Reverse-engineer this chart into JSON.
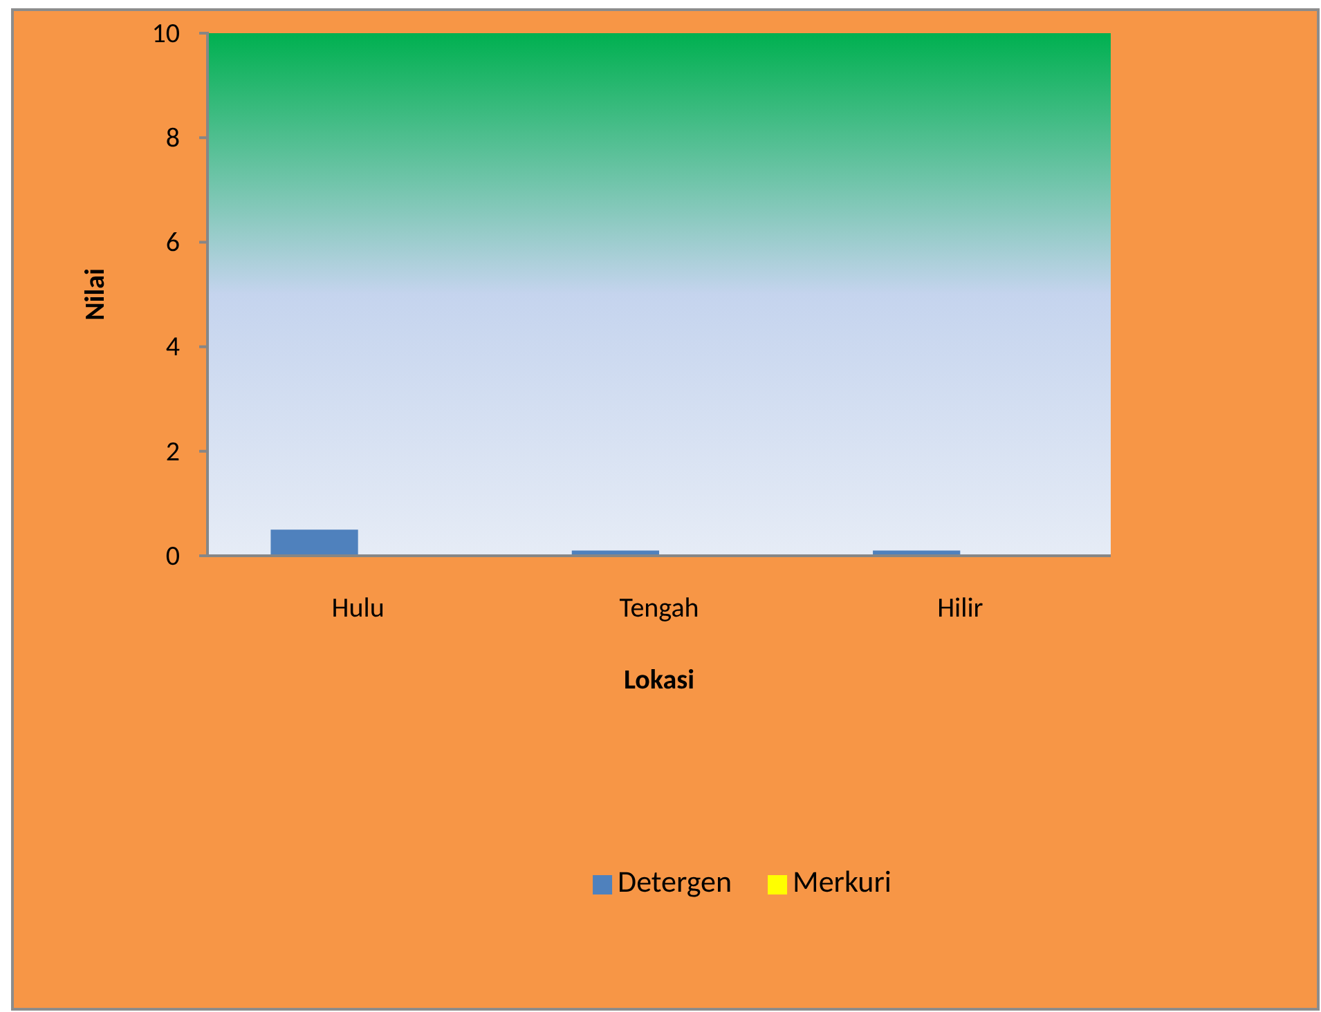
{
  "chart_data": {
    "type": "bar",
    "xlabel": "Lokasi",
    "ylabel": "Nilai",
    "categories": [
      "Hulu",
      "Tengah",
      "Hilir"
    ],
    "series": [
      {
        "name": "Detergen",
        "color": "#4f81bd",
        "values": [
          0.5,
          0.1,
          0.1
        ]
      },
      {
        "name": "Merkuri",
        "color": "#ffff00",
        "values": [
          0,
          0,
          0
        ]
      }
    ],
    "ylim": [
      0,
      10
    ],
    "yticks": [
      0,
      2,
      4,
      6,
      8,
      10
    ],
    "grid": false,
    "legend": "bottom"
  }
}
